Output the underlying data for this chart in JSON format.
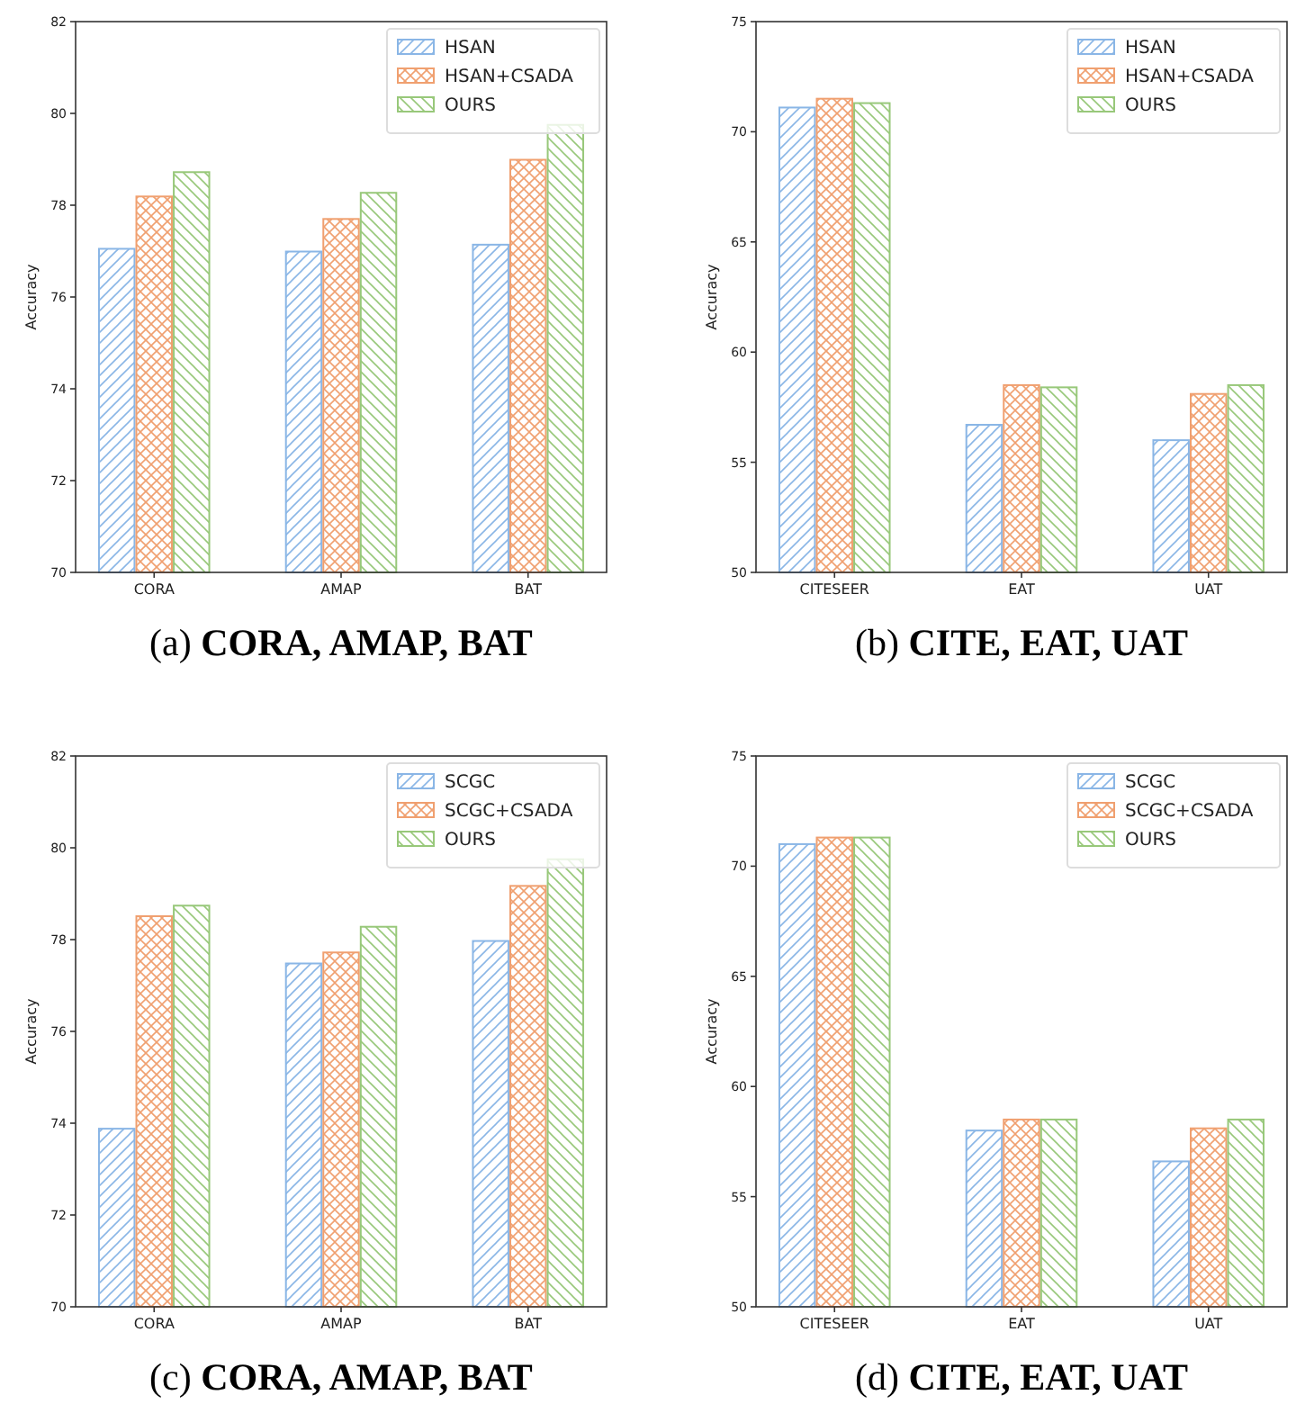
{
  "chart_data": [
    {
      "type": "bar",
      "title": "(a) CORA, AMAP, BAT",
      "ylabel": "Accuracy",
      "categories": [
        "CORA",
        "AMAP",
        "BAT"
      ],
      "ylim": [
        70,
        82
      ],
      "yticks": [
        70,
        72,
        74,
        76,
        78,
        80,
        82
      ],
      "legend": "top right",
      "series": [
        {
          "name": "HSAN",
          "color": "#8ab6e6",
          "values": [
            77.05,
            76.99,
            77.14
          ]
        },
        {
          "name": "HSAN+CSADA",
          "color": "#f0a070",
          "values": [
            78.19,
            77.7,
            78.99
          ]
        },
        {
          "name": "OURS",
          "color": "#98c87a",
          "values": [
            78.72,
            78.27,
            79.75
          ]
        }
      ]
    },
    {
      "type": "bar",
      "title": "(b) CITE, EAT, UAT",
      "ylabel": "Accuracy",
      "categories": [
        "CITESEER",
        "EAT",
        "UAT"
      ],
      "ylim": [
        50,
        75
      ],
      "yticks": [
        50,
        55,
        60,
        65,
        70,
        75
      ],
      "legend": "top right",
      "series": [
        {
          "name": "HSAN",
          "color": "#8ab6e6",
          "values": [
            71.1,
            56.7,
            56.0
          ]
        },
        {
          "name": "HSAN+CSADA",
          "color": "#f0a070",
          "values": [
            71.5,
            58.5,
            58.1
          ]
        },
        {
          "name": "OURS",
          "color": "#98c87a",
          "values": [
            71.3,
            58.4,
            58.5
          ]
        }
      ]
    },
    {
      "type": "bar",
      "title": "(c) CORA, AMAP, BAT",
      "ylabel": "Accuracy",
      "categories": [
        "CORA",
        "AMAP",
        "BAT"
      ],
      "ylim": [
        70,
        82
      ],
      "yticks": [
        70,
        72,
        74,
        76,
        78,
        80,
        82
      ],
      "legend": "top right",
      "series": [
        {
          "name": "SCGC",
          "color": "#8ab6e6",
          "values": [
            73.88,
            77.48,
            77.97
          ]
        },
        {
          "name": "SCGC+CSADA",
          "color": "#f0a070",
          "values": [
            78.51,
            77.72,
            79.17
          ]
        },
        {
          "name": "OURS",
          "color": "#98c87a",
          "values": [
            78.74,
            78.28,
            79.75
          ]
        }
      ]
    },
    {
      "type": "bar",
      "title": "(d) CITE, EAT, UAT",
      "ylabel": "Accuracy",
      "categories": [
        "CITESEER",
        "EAT",
        "UAT"
      ],
      "ylim": [
        50,
        75
      ],
      "yticks": [
        50,
        55,
        60,
        65,
        70,
        75
      ],
      "legend": "top right",
      "series": [
        {
          "name": "SCGC",
          "color": "#8ab6e6",
          "values": [
            71.0,
            58.0,
            56.6
          ]
        },
        {
          "name": "SCGC+CSADA",
          "color": "#f0a070",
          "values": [
            71.3,
            58.5,
            58.1
          ]
        },
        {
          "name": "OURS",
          "color": "#98c87a",
          "values": [
            71.3,
            58.5,
            58.5
          ]
        }
      ]
    }
  ]
}
